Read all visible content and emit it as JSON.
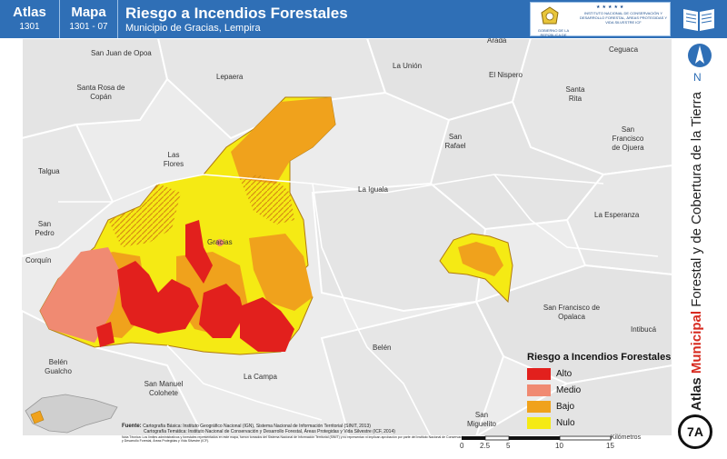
{
  "header": {
    "atlas_label": "Atlas",
    "atlas_code": "1301",
    "mapa_label": "Mapa",
    "mapa_code": "1301 - 07",
    "title": "Riesgo a Incendios Forestales",
    "subtitle": "Municipio de Gracias, Lempira",
    "logo_gobierno_text": "GOBIERNO DE LA REPÚBLICA DE HONDURAS",
    "logo_icf_stars": "★★★★★",
    "logo_icf_text": "INSTITUTO NACIONAL DE CONSERVACIÓN Y DESARROLLO FORESTAL, ÁREAS PROTEGIDAS Y VIDA SILVESTRE ICF"
  },
  "side_title": {
    "part1": "Atlas",
    "part2": "Municipal",
    "part3": "Forestal y de Cobertura de la Tierra"
  },
  "compass_letter": "N",
  "map_code": "7A",
  "places": {
    "san_juan_opoa": "San Juan de Opoa",
    "santa_rosa": "Santa Rosa de Copán",
    "lepaera": "Lepaera",
    "la_union": "La Unión",
    "el_nispero": "El Nispero",
    "arada": "Arada",
    "ceguaca": "Ceguaca",
    "santa_rita": "Santa Rita",
    "san_rafael": "San Rafael",
    "san_francisco_ojuera": "San Francisco de Ojuera",
    "talgua": "Talgua",
    "las_flores": "Las Flores",
    "la_iguala": "La Iguala",
    "la_esperanza": "La Esperanza",
    "san_pedro": "San Pedro",
    "gracias": "Gracias",
    "corquin": "Corquín",
    "san_francisco_opalaca": "San Francisco de Opalaca",
    "intibuca": "Intibucá",
    "belen": "Belén",
    "belen_gualcho": "Belén Gualcho",
    "san_manuel_colohete": "San Manuel Colohete",
    "la_campa": "La Campa",
    "san_miguelito": "San Miguelito"
  },
  "legend": {
    "title": "Riesgo a Incendios Forestales",
    "items": [
      {
        "label": "Alto",
        "color": "#e2201d"
      },
      {
        "label": "Medio",
        "color": "#f08a72"
      },
      {
        "label": "Bajo",
        "color": "#f0a21c"
      },
      {
        "label": "Nulo",
        "color": "#f5ea14"
      }
    ]
  },
  "sources": {
    "fuente_label": "Fuente:",
    "line1": "Cartografía Básica: Instituto Geográfico Nacional (IGN), Sistema Nacional de Información Territorial (SINIT, 2013)",
    "line2": "Cartografía Temática: Instituto Nacional de Conservación y Desarrollo Forestal, Áreas Protegidas y Vida Silvestre (ICF, 2014)",
    "nota": "Nota Técnica: Los límites administrativos y forestales representados en este mapa, fueron tomados del Sistema Nacional de Información Territorial (SINIT) y no representan ni implican aprobación por parte del Instituto Nacional de Conservación y Desarrollo Forestal, Áreas Protegidas y Vida Silvestre (ICF)."
  },
  "scale": {
    "ticks": [
      "0",
      "2.5",
      "5",
      "10",
      "15"
    ],
    "unit": "Kilómetros"
  }
}
